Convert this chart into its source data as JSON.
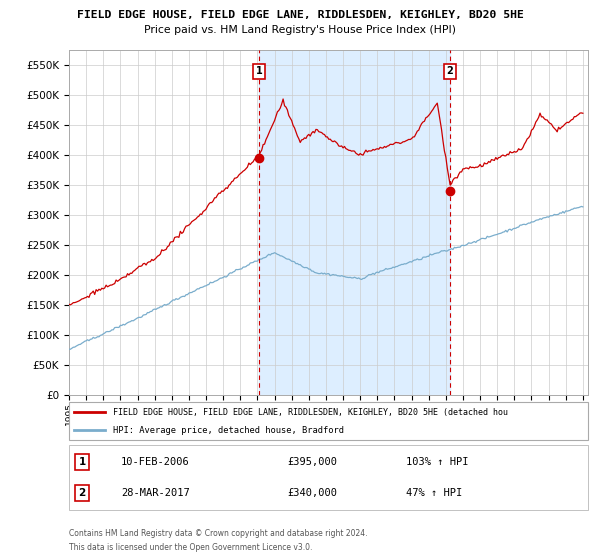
{
  "title_line1": "FIELD EDGE HOUSE, FIELD EDGE LANE, RIDDLESDEN, KEIGHLEY, BD20 5HE",
  "title_line2": "Price paid vs. HM Land Registry's House Price Index (HPI)",
  "ylim": [
    0,
    575000
  ],
  "yticks": [
    0,
    50000,
    100000,
    150000,
    200000,
    250000,
    300000,
    350000,
    400000,
    450000,
    500000,
    550000
  ],
  "ytick_labels": [
    "£0",
    "£50K",
    "£100K",
    "£150K",
    "£200K",
    "£250K",
    "£300K",
    "£350K",
    "£400K",
    "£450K",
    "£500K",
    "£550K"
  ],
  "sale1_year": 2006.11,
  "sale1_price": 395000,
  "sale1_label": "1",
  "sale1_date": "10-FEB-2006",
  "sale1_price_str": "£395,000",
  "sale1_hpi_pct": "103% ↑ HPI",
  "sale2_year": 2017.24,
  "sale2_price": 340000,
  "sale2_label": "2",
  "sale2_date": "28-MAR-2017",
  "sale2_price_str": "£340,000",
  "sale2_hpi_pct": "47% ↑ HPI",
  "red_line_color": "#cc0000",
  "blue_line_color": "#7aadcc",
  "shade_color": "#ddeeff",
  "dashed_vline_color": "#cc0000",
  "background_color": "#ffffff",
  "grid_color": "#cccccc",
  "legend_label_red": "FIELD EDGE HOUSE, FIELD EDGE LANE, RIDDLESDEN, KEIGHLEY, BD20 5HE (detached hou",
  "legend_label_blue": "HPI: Average price, detached house, Bradford",
  "footer_line1": "Contains HM Land Registry data © Crown copyright and database right 2024.",
  "footer_line2": "This data is licensed under the Open Government Licence v3.0."
}
